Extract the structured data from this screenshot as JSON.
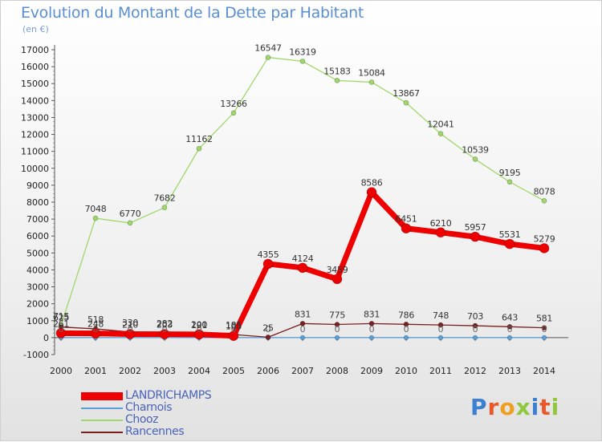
{
  "header": {
    "title": "Evolution du Montant de la Dette par Habitant",
    "subtitle": "(en €)"
  },
  "logo": {
    "text": "Proxiti"
  },
  "chart_data": {
    "type": "line",
    "title": "Evolution du Montant de la Dette par Habitant",
    "subtitle": "(en €)",
    "xlabel": "",
    "ylabel": "",
    "x": [
      "2000",
      "2001",
      "2002",
      "2003",
      "2004",
      "2005",
      "2006",
      "2007",
      "2008",
      "2009",
      "2010",
      "2011",
      "2012",
      "2013",
      "2014"
    ],
    "ylim": [
      -1000,
      17000
    ],
    "yticks": [
      "-1000",
      "0",
      "1000",
      "2000",
      "3000",
      "4000",
      "5000",
      "6000",
      "7000",
      "8000",
      "9000",
      "10000",
      "11000",
      "12000",
      "13000",
      "14000",
      "15000",
      "16000",
      "17000"
    ],
    "grid": false,
    "legend_position": "bottom-left",
    "series": [
      {
        "name": "LANDRICHAMPS",
        "color": "#ee0000",
        "values": [
          261,
          248,
          210,
          203,
          191,
          105,
          4355,
          4124,
          3459,
          8586,
          6451,
          6210,
          5957,
          5531,
          5279
        ],
        "labels": [
          "261",
          "248",
          "210",
          "203",
          "191",
          "105",
          "4355",
          "4124",
          "3459",
          "8586",
          "6451",
          "6210",
          "5957",
          "5531",
          "5279"
        ]
      },
      {
        "name": "Charnois",
        "color": "#5a9fd8",
        "values": [
          0,
          0,
          0,
          0,
          0,
          0,
          0,
          0,
          0,
          0,
          0,
          0,
          0,
          0,
          0
        ],
        "labels": [
          "0",
          "0",
          "0",
          "0",
          "0",
          "0",
          "0",
          "0",
          "0",
          "0",
          "0",
          "0",
          "0",
          "0",
          "0"
        ]
      },
      {
        "name": "Chooz",
        "color": "#9fd86a",
        "values": [
          715,
          7048,
          6770,
          7682,
          11162,
          13266,
          16547,
          16319,
          15183,
          15084,
          13867,
          12041,
          10539,
          9195,
          8078
        ],
        "labels": [
          "715",
          "7048",
          "6770",
          "7682",
          "11162",
          "13266",
          "16547",
          "16319",
          "15183",
          "15084",
          "13867",
          "12041",
          "10539",
          "9195",
          "8078"
        ]
      },
      {
        "name": "Rancennes",
        "color": "#7a2020",
        "values": [
          625,
          518,
          330,
          282,
          200,
          185,
          25,
          831,
          775,
          831,
          786,
          748,
          703,
          643,
          581
        ],
        "labels": [
          "625",
          "518",
          "330",
          "282",
          "200",
          "185",
          "25",
          "831",
          "775",
          "831",
          "786",
          "748",
          "703",
          "643",
          "581"
        ]
      }
    ]
  }
}
